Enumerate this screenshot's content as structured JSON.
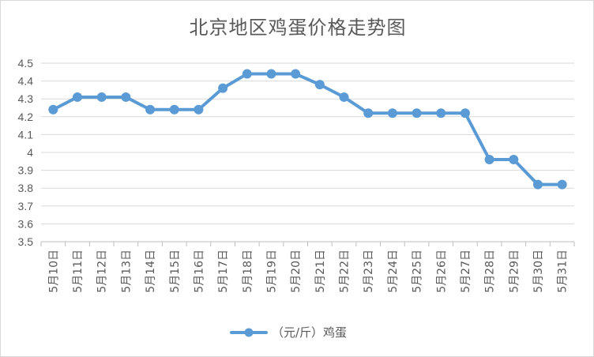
{
  "chart_data": {
    "type": "line",
    "title": "北京地区鸡蛋价格走势图",
    "xlabel": "",
    "ylabel": "",
    "categories": [
      "5月10日",
      "5月11日",
      "5月12日",
      "5月13日",
      "5月14日",
      "5月15日",
      "5月16日",
      "5月17日",
      "5月18日",
      "5月19日",
      "5月20日",
      "5月21日",
      "5月22日",
      "5月23日",
      "5月24日",
      "5月25日",
      "5月26日",
      "5月27日",
      "5月28日",
      "5月29日",
      "5月30日",
      "5月31日"
    ],
    "series": [
      {
        "name": "（元/斤）鸡蛋",
        "values": [
          4.24,
          4.31,
          4.31,
          4.31,
          4.24,
          4.24,
          4.24,
          4.36,
          4.44,
          4.44,
          4.44,
          4.38,
          4.31,
          4.22,
          4.22,
          4.22,
          4.22,
          4.22,
          3.96,
          3.96,
          3.82,
          3.82
        ],
        "color": "#5b9bd5"
      }
    ],
    "yticks": [
      "3.5",
      "3.6",
      "3.7",
      "3.8",
      "3.9",
      "4",
      "4.1",
      "4.2",
      "4.3",
      "4.4",
      "4.5"
    ],
    "ylim": [
      3.5,
      4.5
    ],
    "grid": true,
    "legend_position": "bottom"
  }
}
